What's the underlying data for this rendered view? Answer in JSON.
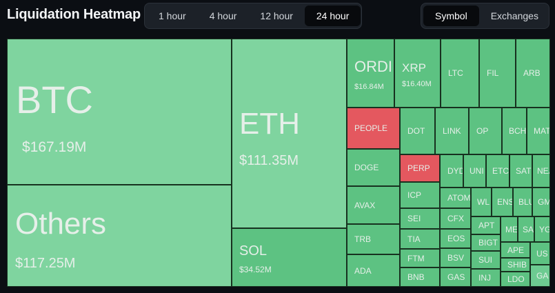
{
  "header": {
    "title": "Liquidation Heatmap"
  },
  "time_ranges": [
    {
      "label": "1 hour",
      "active": false
    },
    {
      "label": "4 hour",
      "active": false
    },
    {
      "label": "12 hour",
      "active": false
    },
    {
      "label": "24 hour",
      "active": true
    }
  ],
  "views": [
    {
      "label": "Symbol",
      "active": true
    },
    {
      "label": "Exchanges",
      "active": false
    }
  ],
  "colors": {
    "long_liq": "#5dc282",
    "short_liq": "#e4585f",
    "background": "#0b0e13"
  },
  "tiles": {
    "btc": {
      "symbol": "BTC",
      "value": "$167.19M"
    },
    "others": {
      "symbol": "Others",
      "value": "$117.25M"
    },
    "eth": {
      "symbol": "ETH",
      "value": "$111.35M"
    },
    "sol": {
      "symbol": "SOL",
      "value": "$34.52M"
    },
    "ordi": {
      "symbol": "ORDI",
      "value": "$16.84M"
    },
    "xrp": {
      "symbol": "XRP",
      "value": "$16.40M"
    },
    "ltc": {
      "symbol": "LTC"
    },
    "fil": {
      "symbol": "FIL"
    },
    "arb": {
      "symbol": "ARB"
    },
    "people": {
      "symbol": "PEOPLE"
    },
    "dot": {
      "symbol": "DOT"
    },
    "link": {
      "symbol": "LINK"
    },
    "op": {
      "symbol": "OP"
    },
    "bch": {
      "symbol": "BCH"
    },
    "mat": {
      "symbol": "MAT"
    },
    "doge": {
      "symbol": "DOGE"
    },
    "perp": {
      "symbol": "PERP"
    },
    "dyd": {
      "symbol": "DYD"
    },
    "uni": {
      "symbol": "UNI"
    },
    "etc": {
      "symbol": "ETC"
    },
    "sat": {
      "symbol": "SAT"
    },
    "nea": {
      "symbol": "NEA"
    },
    "avax": {
      "symbol": "AVAX"
    },
    "icp": {
      "symbol": "ICP"
    },
    "atom": {
      "symbol": "ATOM"
    },
    "wl": {
      "symbol": "WL"
    },
    "ens": {
      "symbol": "ENS"
    },
    "blu": {
      "symbol": "BLU"
    },
    "gm": {
      "symbol": "GM"
    },
    "sei": {
      "symbol": "SEI"
    },
    "cfx": {
      "symbol": "CFX"
    },
    "apt": {
      "symbol": "APT"
    },
    "me": {
      "symbol": "ME"
    },
    "sa": {
      "symbol": "SA"
    },
    "yg": {
      "symbol": "YG"
    },
    "trb": {
      "symbol": "TRB"
    },
    "tia": {
      "symbol": "TIA"
    },
    "eos": {
      "symbol": "EOS"
    },
    "bigt": {
      "symbol": "BIGT"
    },
    "ape": {
      "symbol": "APE"
    },
    "us": {
      "symbol": "US"
    },
    "ftm": {
      "symbol": "FTM"
    },
    "bsv": {
      "symbol": "BSV"
    },
    "sui": {
      "symbol": "SUI"
    },
    "shib": {
      "symbol": "SHIB"
    },
    "ada": {
      "symbol": "ADA"
    },
    "bnb": {
      "symbol": "BNB"
    },
    "gas": {
      "symbol": "GAS"
    },
    "inj": {
      "symbol": "INJ"
    },
    "ldo": {
      "symbol": "LDO"
    },
    "ga": {
      "symbol": "GA"
    }
  }
}
